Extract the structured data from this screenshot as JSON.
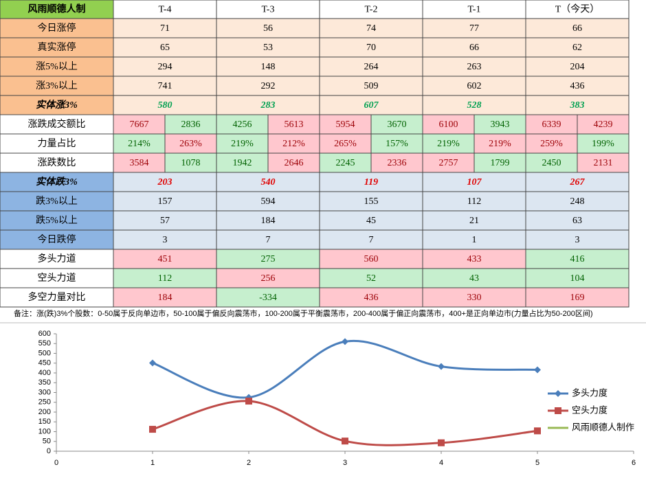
{
  "table": {
    "header": [
      "风雨顺德人制",
      "T-4",
      "T-3",
      "T-2",
      "T-1",
      "T（今天）"
    ],
    "rows": [
      {
        "label": "今日涨停",
        "style": "up",
        "cells": [
          "71",
          "56",
          "74",
          "77",
          "66"
        ]
      },
      {
        "label": "真实涨停",
        "style": "up",
        "cells": [
          "65",
          "53",
          "70",
          "66",
          "62"
        ]
      },
      {
        "label": "涨5%以上",
        "style": "up",
        "cells": [
          "294",
          "148",
          "264",
          "263",
          "204"
        ]
      },
      {
        "label": "涨3%以上",
        "style": "up",
        "cells": [
          "741",
          "292",
          "509",
          "602",
          "436"
        ]
      },
      {
        "label": "实体涨3%",
        "style": "up-strong",
        "cells": [
          "580",
          "283",
          "607",
          "528",
          "383"
        ]
      },
      {
        "label": "涨跌成交额比",
        "style": "split",
        "cells": [
          "7667",
          "2836",
          "4256",
          "5613",
          "5954",
          "3670",
          "6100",
          "3943",
          "6339",
          "4239"
        ],
        "hl": [
          "r",
          "g",
          "g",
          "r",
          "r",
          "g",
          "r",
          "g",
          "r",
          "r"
        ]
      },
      {
        "label": "力量占比",
        "style": "split",
        "cells": [
          "214%",
          "263%",
          "219%",
          "212%",
          "265%",
          "157%",
          "219%",
          "219%",
          "259%",
          "199%"
        ],
        "hl": [
          "g",
          "r",
          "g",
          "r",
          "r",
          "g",
          "g",
          "r",
          "r",
          "g"
        ]
      },
      {
        "label": "涨跌数比",
        "style": "split",
        "cells": [
          "3584",
          "1078",
          "1942",
          "2646",
          "2245",
          "2336",
          "2757",
          "1799",
          "2450",
          "2131"
        ],
        "hl": [
          "r",
          "g",
          "g",
          "r",
          "g",
          "r",
          "r",
          "g",
          "g",
          "r"
        ]
      },
      {
        "label": "实体跌3%",
        "style": "down-strong",
        "cells": [
          "203",
          "540",
          "119",
          "107",
          "267"
        ]
      },
      {
        "label": "跌3%以上",
        "style": "down",
        "cells": [
          "157",
          "594",
          "155",
          "112",
          "248"
        ]
      },
      {
        "label": "跌5%以上",
        "style": "down",
        "cells": [
          "57",
          "184",
          "45",
          "21",
          "63"
        ]
      },
      {
        "label": "今日跌停",
        "style": "down",
        "cells": [
          "3",
          "7",
          "7",
          "1",
          "3"
        ]
      },
      {
        "label": "多头力道",
        "style": "hl",
        "cells": [
          "451",
          "275",
          "560",
          "433",
          "416"
        ],
        "hl": [
          "r",
          "g",
          "r",
          "r",
          "g"
        ]
      },
      {
        "label": "空头力道",
        "style": "hl",
        "cells": [
          "112",
          "256",
          "52",
          "43",
          "104"
        ],
        "hl": [
          "g",
          "r",
          "g",
          "g",
          "g"
        ]
      },
      {
        "label": "多空力量对比",
        "style": "hl",
        "cells": [
          "184",
          "-334",
          "436",
          "330",
          "169"
        ],
        "hl": [
          "r",
          "g",
          "r",
          "r",
          "r"
        ]
      }
    ],
    "note": "备注：涨(跌)3%个股数：0-50属于反向单边市，50-100属于偏反向震荡市，100-200属于平衡震荡市，200-400属于偏正向震荡市，400+是正向单边市(力量占比为50-200区间)"
  },
  "chart_data": {
    "type": "line",
    "x": [
      1,
      2,
      3,
      4,
      5
    ],
    "series": [
      {
        "name": "多头力度",
        "color": "#4a7ebb",
        "values": [
          451,
          275,
          560,
          433,
          416
        ]
      },
      {
        "name": "空头力度",
        "color": "#be4b48",
        "values": [
          112,
          256,
          52,
          43,
          104
        ]
      },
      {
        "name": "风雨顺德人制作",
        "color": "#98b954",
        "values": [
          null,
          null,
          null,
          null,
          null
        ]
      }
    ],
    "xlim": [
      0,
      6
    ],
    "xticks": [
      0,
      1,
      2,
      3,
      4,
      5,
      6
    ],
    "ylim": [
      0,
      600
    ],
    "yticks": [
      0,
      50,
      100,
      150,
      200,
      250,
      300,
      350,
      400,
      450,
      500,
      550,
      600
    ],
    "legend": "right"
  }
}
